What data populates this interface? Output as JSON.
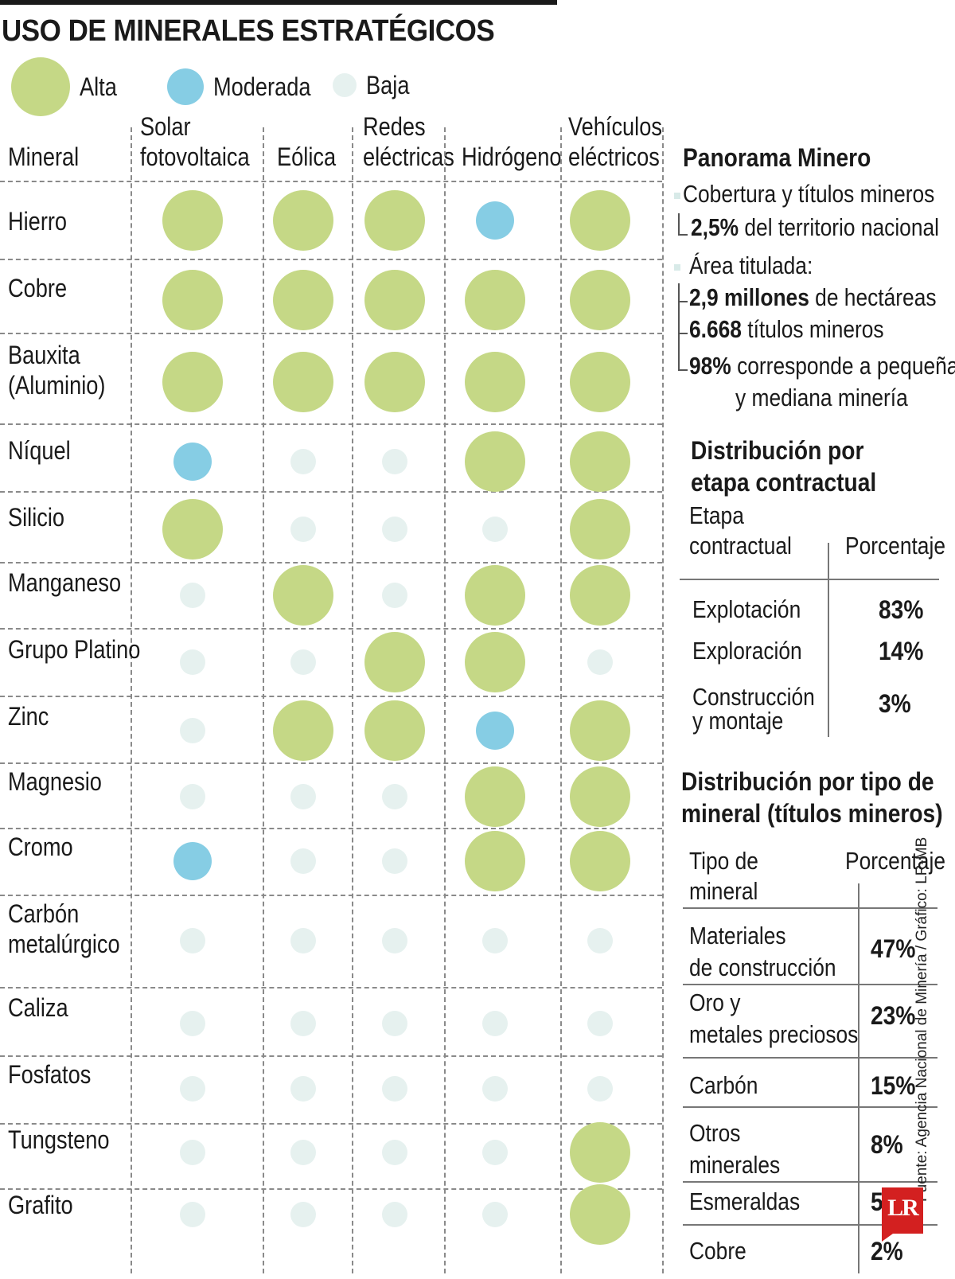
{
  "title": "USO DE MINERALES ESTRATÉGICOS",
  "colors": {
    "alta": "#c5d886",
    "moderada": "#86cde4",
    "baja": "#e6f1ef"
  },
  "legend": [
    {
      "key": "alta",
      "label": "Alta"
    },
    {
      "key": "moderada",
      "label": "Moderada"
    },
    {
      "key": "baja",
      "label": "Baja"
    }
  ],
  "chart_data": {
    "type": "table",
    "row_header": "Mineral",
    "columns": [
      [
        "Solar",
        "fotovoltaica"
      ],
      [
        "",
        "Eólica"
      ],
      [
        "Redes",
        "eléctricas"
      ],
      [
        "",
        "Hidrógeno"
      ],
      [
        "Vehículos",
        "eléctricos"
      ]
    ],
    "rows": [
      {
        "mineral": [
          "Hierro"
        ],
        "values": [
          "alta",
          "alta",
          "alta",
          "moderada",
          "alta"
        ]
      },
      {
        "mineral": [
          "Cobre"
        ],
        "values": [
          "alta",
          "alta",
          "alta",
          "alta",
          "alta"
        ]
      },
      {
        "mineral": [
          "Bauxita",
          "(Aluminio)"
        ],
        "values": [
          "alta",
          "alta",
          "alta",
          "alta",
          "alta"
        ]
      },
      {
        "mineral": [
          "Níquel"
        ],
        "values": [
          "moderada",
          "baja",
          "baja",
          "alta",
          "alta"
        ]
      },
      {
        "mineral": [
          "Silicio"
        ],
        "values": [
          "alta",
          "baja",
          "baja",
          "baja",
          "alta"
        ]
      },
      {
        "mineral": [
          "Manganeso"
        ],
        "values": [
          "baja",
          "alta",
          "baja",
          "alta",
          "alta"
        ]
      },
      {
        "mineral": [
          "Grupo Platino"
        ],
        "values": [
          "baja",
          "baja",
          "alta",
          "alta",
          "baja"
        ]
      },
      {
        "mineral": [
          "Zinc"
        ],
        "values": [
          "baja",
          "alta",
          "alta",
          "moderada",
          "alta"
        ]
      },
      {
        "mineral": [
          "Magnesio"
        ],
        "values": [
          "baja",
          "baja",
          "baja",
          "alta",
          "alta"
        ]
      },
      {
        "mineral": [
          "Cromo"
        ],
        "values": [
          "moderada",
          "baja",
          "baja",
          "alta",
          "alta"
        ]
      },
      {
        "mineral": [
          "Carbón",
          "metalúrgico"
        ],
        "values": [
          "baja",
          "baja",
          "baja",
          "baja",
          "baja"
        ]
      },
      {
        "mineral": [
          "Caliza"
        ],
        "values": [
          "baja",
          "baja",
          "baja",
          "baja",
          "baja"
        ]
      },
      {
        "mineral": [
          "Fosfatos"
        ],
        "values": [
          "baja",
          "baja",
          "baja",
          "baja",
          "baja"
        ]
      },
      {
        "mineral": [
          "Tungsteno"
        ],
        "values": [
          "baja",
          "baja",
          "baja",
          "baja",
          "alta"
        ]
      },
      {
        "mineral": [
          "Grafito"
        ],
        "values": [
          "baja",
          "baja",
          "baja",
          "baja",
          "alta"
        ]
      }
    ]
  },
  "panorama": {
    "title": "Panorama Minero",
    "cobertura_label": "Cobertura y títulos mineros",
    "cobertura_value": "2,5%",
    "cobertura_text": "del territorio nacional",
    "area_label": "Área titulada:",
    "area_value": "2,9 millones",
    "area_text": "de hectáreas",
    "titulos_value": "6.668",
    "titulos_text": "títulos mineros",
    "pequena_value": "98%",
    "pequena_text": "corresponde a pequeña",
    "pequena_text2": "y mediana minería"
  },
  "etapa": {
    "title_line1": "Distribución por",
    "title_line2": "etapa contractual",
    "header_col1": [
      "Etapa",
      "contractual"
    ],
    "header_col2": "Porcentaje",
    "rows": [
      {
        "label": [
          "Explotación"
        ],
        "value": "83%"
      },
      {
        "label": [
          "Exploración"
        ],
        "value": "14%"
      },
      {
        "label": [
          "Construcción",
          "y montaje"
        ],
        "value": "3%"
      }
    ]
  },
  "tipo": {
    "title_line1": "Distribución por tipo de",
    "title_line2": "mineral (títulos mineros)",
    "header_col1": [
      "Tipo de",
      "mineral"
    ],
    "header_col2": "Porcentaje",
    "rows": [
      {
        "label": [
          "Materiales",
          "de construcción"
        ],
        "value": "47%"
      },
      {
        "label": [
          "Oro y",
          "metales preciosos"
        ],
        "value": "23%"
      },
      {
        "label": [
          "Carbón"
        ],
        "value": "15%"
      },
      {
        "label": [
          "Otros",
          "minerales"
        ],
        "value": "8%"
      },
      {
        "label": [
          "Esmeraldas"
        ],
        "value": "5%"
      },
      {
        "label": [
          "Cobre"
        ],
        "value": "2%"
      }
    ]
  },
  "source": "Fuente: Agencia Nacional de Minería / Gráfico: LR-MB",
  "logo": "LR"
}
